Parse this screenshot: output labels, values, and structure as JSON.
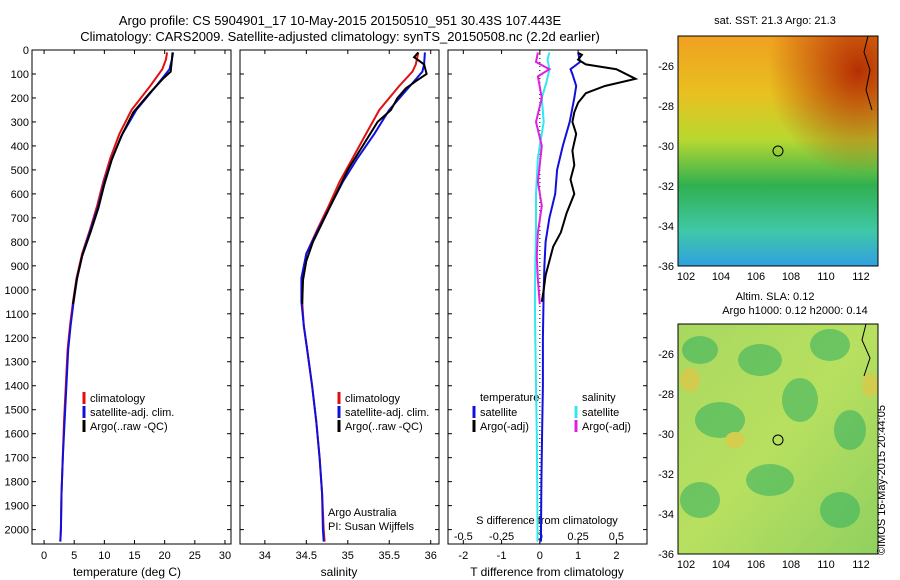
{
  "title_line1": "Argo profile: CS 5904901_17 10-May-2015 20150510_951 30.43S 107.443E",
  "title_line2": "Climatology: CARS2009. Satellite-adjusted climatology: synTS_20150508.nc (2.2d earlier)",
  "credit": "©IMOS 16-May-2015 20:44:05",
  "map1_title": "sat. SST: 21.3 Argo: 21.3",
  "map2_title1": "Altim. SLA: 0.12",
  "map2_title2": "Argo h1000: 0.12 h2000: 0.14",
  "colors": {
    "climatology": "#e01010",
    "satellite": "#1010dd",
    "argo": "#000000",
    "sal_satellite": "#30e8f0",
    "sal_argo": "#e020e0"
  },
  "chart_data": [
    {
      "type": "line",
      "id": "temperature",
      "xlabel": "temperature (deg C)",
      "xlim": [
        -2,
        31
      ],
      "xticks": [
        0,
        5,
        10,
        15,
        20,
        25,
        30
      ],
      "ylim": [
        2060,
        0
      ],
      "yticks": [
        0,
        100,
        200,
        300,
        400,
        500,
        600,
        700,
        800,
        900,
        1000,
        1100,
        1200,
        1300,
        1400,
        1500,
        1600,
        1700,
        1800,
        1900,
        2000
      ],
      "legend": [
        "climatology",
        "satellite-adj. clim.",
        "Argo(..raw -QC)"
      ],
      "legend_position": "lower-center",
      "series": [
        {
          "name": "climatology",
          "color": "#e01010",
          "points": [
            [
              20.4,
              10
            ],
            [
              20.2,
              40
            ],
            [
              19.6,
              80
            ],
            [
              17.6,
              150
            ],
            [
              14.5,
              250
            ],
            [
              12.5,
              350
            ],
            [
              11.0,
              450
            ],
            [
              9.8,
              550
            ],
            [
              8.8,
              650
            ],
            [
              7.6,
              750
            ],
            [
              6.3,
              850
            ],
            [
              5.4,
              950
            ],
            [
              4.8,
              1050
            ],
            [
              4.3,
              1150
            ],
            [
              3.9,
              1250
            ],
            [
              3.6,
              1400
            ],
            [
              3.3,
              1550
            ],
            [
              3.1,
              1700
            ],
            [
              2.9,
              1850
            ],
            [
              2.8,
              2000
            ],
            [
              2.7,
              2050
            ]
          ]
        },
        {
          "name": "satellite-adj. clim.",
          "color": "#1010dd",
          "points": [
            [
              21.4,
              10
            ],
            [
              21.2,
              40
            ],
            [
              20.8,
              80
            ],
            [
              18.6,
              150
            ],
            [
              15.3,
              250
            ],
            [
              13.0,
              350
            ],
            [
              11.3,
              450
            ],
            [
              10.0,
              550
            ],
            [
              9.0,
              650
            ],
            [
              7.7,
              750
            ],
            [
              6.4,
              850
            ],
            [
              5.5,
              950
            ],
            [
              4.9,
              1050
            ],
            [
              4.4,
              1150
            ],
            [
              4.0,
              1250
            ],
            [
              3.7,
              1400
            ],
            [
              3.4,
              1550
            ],
            [
              3.1,
              1700
            ],
            [
              2.9,
              1850
            ],
            [
              2.8,
              2000
            ],
            [
              2.7,
              2050
            ]
          ]
        },
        {
          "name": "Argo(..raw -QC)",
          "color": "#000000",
          "points": [
            [
              21.3,
              10
            ],
            [
              21.2,
              40
            ],
            [
              21.0,
              90
            ],
            [
              19.7,
              120
            ],
            [
              17.5,
              180
            ],
            [
              14.8,
              260
            ],
            [
              12.8,
              360
            ],
            [
              11.2,
              460
            ],
            [
              10.0,
              560
            ],
            [
              9.0,
              660
            ],
            [
              7.7,
              760
            ],
            [
              6.3,
              860
            ],
            [
              5.4,
              960
            ],
            [
              4.8,
              1060
            ]
          ]
        }
      ]
    },
    {
      "type": "line",
      "id": "salinity",
      "xlabel": "salinity",
      "xlim": [
        33.7,
        36.1
      ],
      "xticks": [
        34,
        34.5,
        35,
        35.5,
        36
      ],
      "xtick_labels": [
        "34",
        "34.5",
        "35",
        "35.5",
        "36"
      ],
      "ylim": [
        2060,
        0
      ],
      "legend": [
        "climatology",
        "satellite-adj. clim.",
        "Argo(..raw -QC)"
      ],
      "annotation1": "Argo Australia",
      "annotation2": "PI: Susan Wijffels",
      "series": [
        {
          "name": "climatology",
          "color": "#e01010",
          "points": [
            [
              35.85,
              10
            ],
            [
              35.82,
              60
            ],
            [
              35.78,
              90
            ],
            [
              35.62,
              150
            ],
            [
              35.38,
              250
            ],
            [
              35.22,
              350
            ],
            [
              35.06,
              450
            ],
            [
              34.9,
              550
            ],
            [
              34.77,
              650
            ],
            [
              34.63,
              750
            ],
            [
              34.5,
              850
            ],
            [
              34.45,
              950
            ],
            [
              34.45,
              1050
            ],
            [
              34.47,
              1150
            ],
            [
              34.51,
              1250
            ],
            [
              34.57,
              1400
            ],
            [
              34.62,
              1550
            ],
            [
              34.66,
              1700
            ],
            [
              34.69,
              1850
            ],
            [
              34.71,
              2000
            ],
            [
              34.72,
              2050
            ]
          ]
        },
        {
          "name": "satellite-adj. clim.",
          "color": "#1010dd",
          "points": [
            [
              35.93,
              10
            ],
            [
              35.92,
              60
            ],
            [
              35.9,
              90
            ],
            [
              35.75,
              150
            ],
            [
              35.5,
              250
            ],
            [
              35.32,
              350
            ],
            [
              35.12,
              450
            ],
            [
              34.94,
              550
            ],
            [
              34.79,
              650
            ],
            [
              34.64,
              750
            ],
            [
              34.5,
              850
            ],
            [
              34.44,
              950
            ],
            [
              34.44,
              1050
            ],
            [
              34.47,
              1150
            ],
            [
              34.51,
              1250
            ],
            [
              34.57,
              1400
            ],
            [
              34.62,
              1550
            ],
            [
              34.66,
              1700
            ],
            [
              34.69,
              1850
            ],
            [
              34.7,
              2000
            ],
            [
              34.71,
              2050
            ]
          ]
        },
        {
          "name": "Argo(..raw -QC)",
          "color": "#000000",
          "points": [
            [
              35.85,
              10
            ],
            [
              35.8,
              30
            ],
            [
              35.92,
              60
            ],
            [
              35.95,
              100
            ],
            [
              35.82,
              130
            ],
            [
              35.7,
              160
            ],
            [
              35.6,
              200
            ],
            [
              35.52,
              250
            ],
            [
              35.36,
              300
            ],
            [
              35.18,
              400
            ],
            [
              35.0,
              500
            ],
            [
              34.86,
              600
            ],
            [
              34.72,
              700
            ],
            [
              34.58,
              800
            ],
            [
              34.5,
              880
            ],
            [
              34.46,
              960
            ],
            [
              34.45,
              1060
            ]
          ]
        }
      ]
    },
    {
      "type": "line",
      "id": "difference",
      "xlabel": "T difference from climatology",
      "xlabel_top": "S difference from climatology",
      "xlim": [
        -2.4,
        2.8
      ],
      "xticks": [
        -2,
        -1,
        0,
        1,
        2
      ],
      "xticks_top": [
        -0.5,
        -0.25,
        0,
        0.25,
        0.5
      ],
      "xtick_labels_top": [
        "-0.5",
        "-0.25",
        "0",
        "0.25",
        "0.5"
      ],
      "ylim": [
        2060,
        0
      ],
      "legend_temperature_heading": "temperature",
      "legend_salinity_heading": "salinity",
      "legend": [
        "satellite",
        "Argo(-adj)",
        "satellite",
        "Argo(-adj)"
      ],
      "series": [
        {
          "name": "satellite",
          "color": "#1010dd",
          "points": [
            [
              1.0,
              10
            ],
            [
              1.05,
              50
            ],
            [
              0.8,
              80
            ],
            [
              0.85,
              100
            ],
            [
              0.95,
              150
            ],
            [
              0.9,
              200
            ],
            [
              0.78,
              300
            ],
            [
              0.6,
              400
            ],
            [
              0.45,
              500
            ],
            [
              0.4,
              600
            ],
            [
              0.25,
              700
            ],
            [
              0.15,
              800
            ],
            [
              0.12,
              900
            ],
            [
              0.1,
              1000
            ],
            [
              0.08,
              1200
            ],
            [
              0.08,
              1400
            ],
            [
              0.06,
              1600
            ],
            [
              0.04,
              1800
            ],
            [
              0.03,
              2000
            ],
            [
              0.03,
              2050
            ]
          ]
        },
        {
          "name": "Argo(-adj)",
          "color": "#000000",
          "points": [
            [
              1.0,
              12
            ],
            [
              1.1,
              20
            ],
            [
              1.0,
              40
            ],
            [
              1.2,
              60
            ],
            [
              2.0,
              80
            ],
            [
              2.5,
              120
            ],
            [
              1.7,
              150
            ],
            [
              1.2,
              180
            ],
            [
              1.0,
              220
            ],
            [
              0.9,
              260
            ],
            [
              0.85,
              300
            ],
            [
              0.95,
              350
            ],
            [
              0.85,
              420
            ],
            [
              0.9,
              480
            ],
            [
              0.8,
              540
            ],
            [
              0.9,
              600
            ],
            [
              0.7,
              680
            ],
            [
              0.55,
              760
            ],
            [
              0.35,
              820
            ],
            [
              0.25,
              880
            ],
            [
              0.15,
              940
            ],
            [
              0.1,
              1000
            ],
            [
              0.05,
              1050
            ]
          ]
        },
        {
          "name": "satellite",
          "color": "#30e8f0",
          "points": [
            [
              0.25,
              10
            ],
            [
              0.2,
              40
            ],
            [
              0.25,
              80
            ],
            [
              0.18,
              130
            ],
            [
              0.05,
              200
            ],
            [
              0.1,
              300
            ],
            [
              -0.05,
              450
            ],
            [
              -0.1,
              600
            ],
            [
              -0.1,
              750
            ],
            [
              -0.12,
              900
            ],
            [
              -0.13,
              1050
            ],
            [
              -0.12,
              1200
            ],
            [
              -0.1,
              1400
            ],
            [
              -0.08,
              1600
            ],
            [
              -0.07,
              1800
            ],
            [
              -0.06,
              2000
            ],
            [
              -0.06,
              2050
            ]
          ]
        },
        {
          "name": "Argo(-adj)",
          "color": "#e020e0",
          "points": [
            [
              -0.05,
              10
            ],
            [
              -0.1,
              50
            ],
            [
              0.25,
              80
            ],
            [
              -0.05,
              110
            ],
            [
              0.05,
              200
            ],
            [
              -0.1,
              300
            ],
            [
              0.05,
              400
            ],
            [
              -0.05,
              550
            ],
            [
              0.05,
              650
            ],
            [
              -0.05,
              760
            ],
            [
              -0.08,
              860
            ],
            [
              -0.05,
              960
            ],
            [
              0.0,
              1060
            ]
          ]
        }
      ]
    }
  ],
  "maps": {
    "lon_ticks": [
      "102",
      "104",
      "106",
      "108",
      "110",
      "112"
    ],
    "lat_ticks": [
      "-26",
      "-28",
      "-30",
      "-32",
      "-34",
      "-36"
    ]
  }
}
